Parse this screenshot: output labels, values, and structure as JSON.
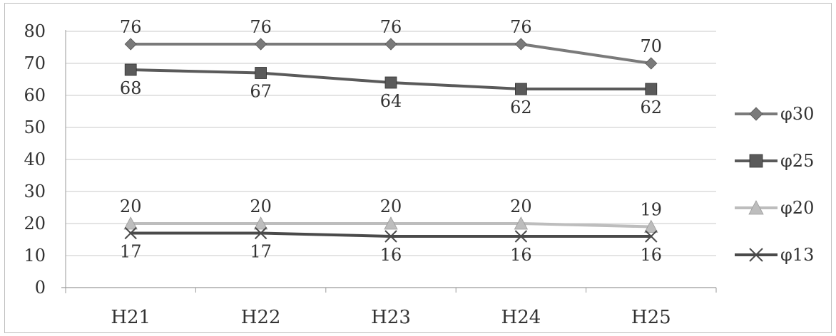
{
  "chart_data": {
    "type": "line",
    "title": "",
    "xlabel": "",
    "ylabel": "",
    "categories": [
      "H21",
      "H22",
      "H23",
      "H24",
      "H25"
    ],
    "ylim": [
      0,
      80
    ],
    "yticks": [
      0,
      10,
      20,
      30,
      40,
      50,
      60,
      70,
      80
    ],
    "grid": "horizontal",
    "legend_position": "right",
    "series": [
      {
        "name": "φ30",
        "values": [
          76,
          76,
          76,
          76,
          70
        ],
        "labels": [
          "76",
          "76",
          "76",
          "76",
          "70"
        ],
        "marker": "diamond",
        "color": "#7a7a7a",
        "label_side": "above"
      },
      {
        "name": "φ25",
        "values": [
          68,
          67,
          64,
          62,
          62
        ],
        "labels": [
          "68",
          "67",
          "64",
          "62",
          "62"
        ],
        "marker": "square",
        "color": "#5a5a5a",
        "label_side": "below"
      },
      {
        "name": "φ20",
        "values": [
          20,
          20,
          20,
          20,
          19
        ],
        "labels": [
          "20",
          "20",
          "20",
          "20",
          "19"
        ],
        "marker": "triangle",
        "color": "#bdbdbd",
        "label_side": "above"
      },
      {
        "name": "φ13",
        "values": [
          17,
          17,
          16,
          16,
          16
        ],
        "labels": [
          "17",
          "17",
          "16",
          "16",
          "16"
        ],
        "marker": "x",
        "color": "#4a4a4a",
        "label_side": "below"
      }
    ]
  }
}
